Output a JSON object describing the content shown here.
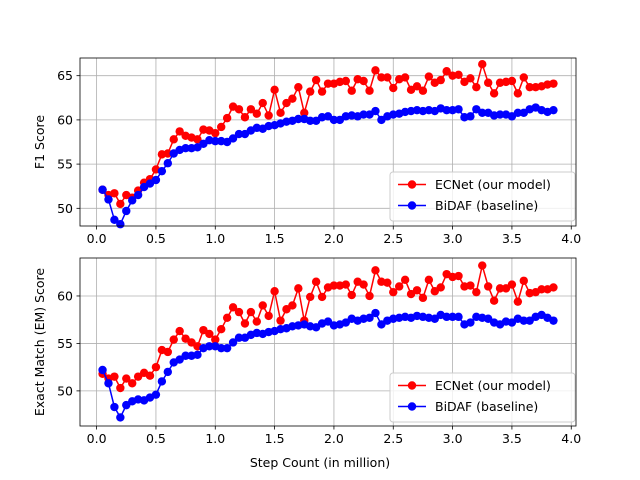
{
  "colors": {
    "ecnet": "#ff0000",
    "bidaf": "#0000ff",
    "grid": "#b0b0b0"
  },
  "chart_data": [
    {
      "type": "line",
      "xlabel": "",
      "ylabel": "F1 Score",
      "xlim": [
        -0.14,
        4.04
      ],
      "ylim": [
        48,
        67
      ],
      "xticks": [
        0.0,
        0.5,
        1.0,
        1.5,
        2.0,
        2.5,
        3.0,
        3.5,
        4.0
      ],
      "yticks": [
        50,
        55,
        60,
        65
      ],
      "grid": true,
      "legend_position": "lower-right",
      "x": [
        0.05,
        0.1,
        0.15,
        0.2,
        0.25,
        0.3,
        0.35,
        0.4,
        0.45,
        0.5,
        0.55,
        0.6,
        0.65,
        0.7,
        0.75,
        0.8,
        0.85,
        0.9,
        0.95,
        1.0,
        1.05,
        1.1,
        1.15,
        1.2,
        1.25,
        1.3,
        1.35,
        1.4,
        1.45,
        1.5,
        1.55,
        1.6,
        1.65,
        1.7,
        1.75,
        1.8,
        1.85,
        1.9,
        1.95,
        2.0,
        2.05,
        2.1,
        2.15,
        2.2,
        2.25,
        2.3,
        2.35,
        2.4,
        2.45,
        2.5,
        2.55,
        2.6,
        2.65,
        2.7,
        2.75,
        2.8,
        2.85,
        2.9,
        2.95,
        3.0,
        3.05,
        3.1,
        3.15,
        3.2,
        3.25,
        3.3,
        3.35,
        3.4,
        3.45,
        3.5,
        3.55,
        3.6,
        3.65,
        3.7,
        3.75,
        3.8,
        3.85
      ],
      "series": [
        {
          "name": "ECNet (our model)",
          "color": "#ff0000",
          "values": [
            52.1,
            51.5,
            51.7,
            50.5,
            51.5,
            51.2,
            52.0,
            52.9,
            53.3,
            54.4,
            56.1,
            56.2,
            57.8,
            58.7,
            58.2,
            58.0,
            57.8,
            58.9,
            58.8,
            58.5,
            59.2,
            60.2,
            61.5,
            61.2,
            60.3,
            61.2,
            60.7,
            61.9,
            60.5,
            63.4,
            60.8,
            61.9,
            62.4,
            63.7,
            60.8,
            63.2,
            64.5,
            63.2,
            64.1,
            64.1,
            64.3,
            64.4,
            63.3,
            64.6,
            64.4,
            63.3,
            65.6,
            64.8,
            64.8,
            63.6,
            64.6,
            64.8,
            63.4,
            63.8,
            63.3,
            64.9,
            64.2,
            64.5,
            65.5,
            65.0,
            65.1,
            64.3,
            64.7,
            63.7,
            66.3,
            64.2,
            63.0,
            64.2,
            64.3,
            64.4,
            63.0,
            64.8,
            63.7,
            63.7,
            63.8,
            64.0,
            64.1
          ]
        },
        {
          "name": "BiDAF (baseline)",
          "color": "#0000ff",
          "values": [
            52.1,
            51.0,
            48.7,
            48.2,
            49.7,
            50.9,
            51.5,
            52.4,
            52.8,
            53.2,
            54.2,
            55.1,
            56.2,
            56.6,
            56.8,
            56.8,
            56.9,
            57.3,
            57.7,
            57.6,
            57.6,
            57.5,
            57.9,
            58.4,
            58.4,
            58.8,
            59.1,
            59.0,
            59.3,
            59.4,
            59.6,
            59.8,
            59.9,
            60.1,
            60.1,
            59.9,
            59.9,
            60.3,
            60.4,
            60.0,
            60.0,
            60.4,
            60.5,
            60.4,
            60.6,
            60.6,
            61.0,
            60.0,
            60.4,
            60.6,
            60.7,
            60.9,
            61.0,
            61.1,
            61.0,
            61.1,
            61.0,
            61.3,
            61.1,
            61.1,
            61.2,
            60.3,
            60.4,
            61.2,
            60.8,
            60.8,
            60.5,
            60.6,
            60.6,
            60.4,
            60.8,
            60.8,
            61.2,
            61.4,
            61.1,
            60.9,
            61.1
          ]
        }
      ]
    },
    {
      "type": "line",
      "xlabel": "Step Count (in million)",
      "ylabel": "Exact Match (EM) Score",
      "xlim": [
        -0.14,
        4.04
      ],
      "ylim": [
        46.3,
        64
      ],
      "xticks": [
        0.0,
        0.5,
        1.0,
        1.5,
        2.0,
        2.5,
        3.0,
        3.5,
        4.0
      ],
      "yticks": [
        50,
        55,
        60
      ],
      "grid": true,
      "legend_position": "lower-right",
      "x": [
        0.05,
        0.1,
        0.15,
        0.2,
        0.25,
        0.3,
        0.35,
        0.4,
        0.45,
        0.5,
        0.55,
        0.6,
        0.65,
        0.7,
        0.75,
        0.8,
        0.85,
        0.9,
        0.95,
        1.0,
        1.05,
        1.1,
        1.15,
        1.2,
        1.25,
        1.3,
        1.35,
        1.4,
        1.45,
        1.5,
        1.55,
        1.6,
        1.65,
        1.7,
        1.75,
        1.8,
        1.85,
        1.9,
        1.95,
        2.0,
        2.05,
        2.1,
        2.15,
        2.2,
        2.25,
        2.3,
        2.35,
        2.4,
        2.45,
        2.5,
        2.55,
        2.6,
        2.65,
        2.7,
        2.75,
        2.8,
        2.85,
        2.9,
        2.95,
        3.0,
        3.05,
        3.1,
        3.15,
        3.2,
        3.25,
        3.3,
        3.35,
        3.4,
        3.45,
        3.5,
        3.55,
        3.6,
        3.65,
        3.7,
        3.75,
        3.8,
        3.85
      ],
      "series": [
        {
          "name": "ECNet (our model)",
          "color": "#ff0000",
          "values": [
            51.8,
            51.3,
            51.5,
            50.3,
            51.3,
            50.8,
            51.5,
            51.9,
            51.6,
            52.5,
            54.3,
            54.1,
            55.4,
            56.3,
            55.5,
            55.1,
            54.7,
            56.4,
            56.0,
            55.4,
            56.5,
            57.7,
            58.8,
            58.3,
            57.1,
            58.3,
            57.3,
            59.0,
            57.9,
            60.5,
            57.4,
            58.6,
            59.0,
            60.8,
            57.4,
            59.9,
            61.5,
            59.9,
            60.9,
            61.1,
            61.1,
            61.2,
            60.1,
            61.5,
            61.2,
            60.0,
            62.7,
            61.5,
            61.4,
            60.4,
            61.0,
            61.7,
            60.2,
            60.6,
            59.8,
            61.7,
            60.5,
            60.9,
            62.3,
            62.0,
            62.1,
            61.0,
            61.1,
            60.4,
            63.2,
            61.0,
            59.5,
            60.8,
            60.8,
            61.2,
            59.4,
            61.6,
            60.3,
            60.4,
            60.7,
            60.7,
            60.9
          ]
        },
        {
          "name": "BiDAF (baseline)",
          "color": "#0000ff",
          "values": [
            52.2,
            50.8,
            48.3,
            47.2,
            48.5,
            48.9,
            49.1,
            49.0,
            49.3,
            49.6,
            51.0,
            52.0,
            53.0,
            53.3,
            53.7,
            53.7,
            53.8,
            54.5,
            54.7,
            54.7,
            54.5,
            54.5,
            55.1,
            55.6,
            55.6,
            55.9,
            56.1,
            56.0,
            56.2,
            56.3,
            56.5,
            56.6,
            56.8,
            56.9,
            57.0,
            56.8,
            56.7,
            57.1,
            57.3,
            56.9,
            57.0,
            57.2,
            57.6,
            57.4,
            57.6,
            57.7,
            58.2,
            57.0,
            57.4,
            57.6,
            57.7,
            57.8,
            57.7,
            57.9,
            57.8,
            57.7,
            57.6,
            58.0,
            57.8,
            57.8,
            57.8,
            57.0,
            57.2,
            57.8,
            57.7,
            57.6,
            57.2,
            57.0,
            57.3,
            57.2,
            57.6,
            57.4,
            57.4,
            57.8,
            58.0,
            57.7,
            57.4
          ]
        }
      ]
    }
  ]
}
